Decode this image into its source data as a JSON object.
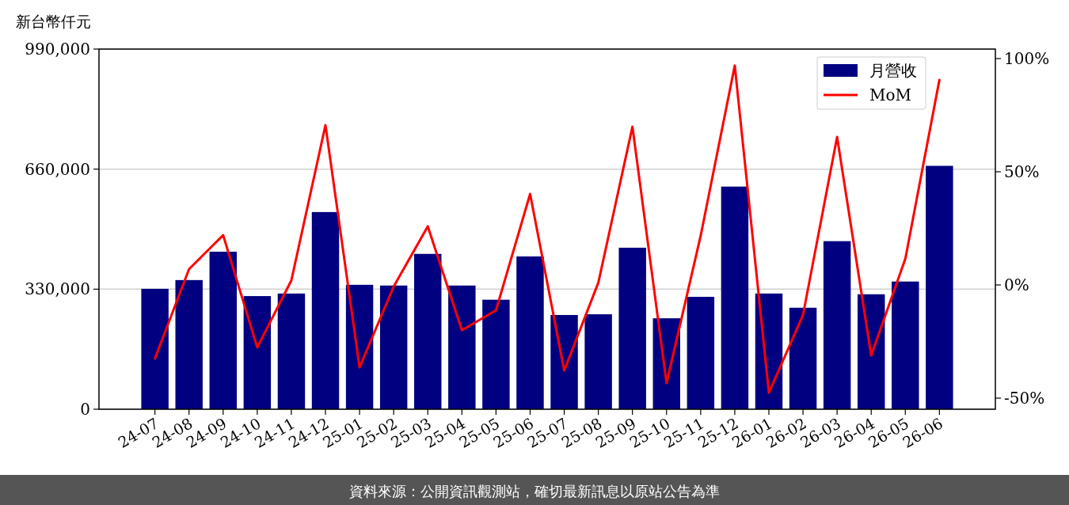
{
  "chart_data": {
    "type": "bar",
    "ylabel": "新台幣仟元",
    "categories": [
      "24-07",
      "24-08",
      "24-09",
      "24-10",
      "24-11",
      "24-12",
      "25-01",
      "25-02",
      "25-03",
      "25-04",
      "25-05",
      "25-06",
      "25-07",
      "25-08",
      "25-09",
      "25-10",
      "25-11",
      "25-12",
      "26-01",
      "26-02",
      "26-03",
      "26-04",
      "26-05",
      "26-06"
    ],
    "series": [
      {
        "name": "月營收",
        "color": "#000080",
        "values": [
          331000,
          355000,
          433000,
          311000,
          318000,
          542000,
          342000,
          340000,
          427000,
          340000,
          301000,
          420000,
          259000,
          261000,
          444000,
          250000,
          309000,
          612000,
          318000,
          279000,
          462000,
          316000,
          351000,
          669000
        ]
      },
      {
        "name": "MoM",
        "type": "line",
        "axis": "y2",
        "color": "#ff0000",
        "values": [
          -32.5,
          7,
          22,
          -27.6,
          2,
          70.6,
          -36.4,
          -0.7,
          25.9,
          -20,
          -11.2,
          40.2,
          -37.8,
          1,
          69.9,
          -43.4,
          21.7,
          96.9,
          -47.6,
          -13.3,
          65.4,
          -31.1,
          11.5,
          90.6
        ]
      }
    ],
    "ylim": [
      0,
      990000
    ],
    "yticks": [
      {
        "value": 0,
        "label": "0"
      },
      {
        "value": 330000,
        "label": "330,000"
      },
      {
        "value": 660000,
        "label": "660,000"
      },
      {
        "value": 990000,
        "label": "990,000"
      }
    ],
    "y2lim": [
      -54.9,
      104.2
    ],
    "y2ticks": [
      {
        "value": -50,
        "label": "-50%"
      },
      {
        "value": 0,
        "label": "0%"
      },
      {
        "value": 50,
        "label": "50%"
      },
      {
        "value": 100,
        "label": "100%"
      }
    ],
    "grid": "y",
    "legend": "top right",
    "annotations": [
      "資料來源：公開資訊觀測站，確切最新訊息以原站公告為準"
    ]
  }
}
